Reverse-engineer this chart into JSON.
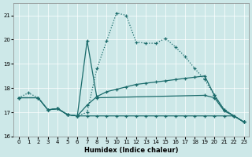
{
  "xlabel": "Humidex (Indice chaleur)",
  "background_color": "#cde8e8",
  "grid_color": "#ffffff",
  "line_color": "#1a6b6b",
  "xlim": [
    -0.5,
    23.5
  ],
  "ylim": [
    16,
    21.5
  ],
  "yticks": [
    16,
    17,
    18,
    19,
    20,
    21
  ],
  "xticks": [
    0,
    1,
    2,
    3,
    4,
    5,
    6,
    7,
    8,
    9,
    10,
    11,
    12,
    13,
    14,
    15,
    16,
    17,
    18,
    19,
    20,
    21,
    22,
    23
  ],
  "curve1_x": [
    0,
    1,
    2,
    3,
    4,
    5,
    6,
    7,
    8,
    9,
    10,
    11,
    12,
    13,
    14,
    15,
    16,
    17,
    18,
    19,
    20,
    21,
    22,
    23
  ],
  "curve1_y": [
    17.6,
    17.8,
    17.6,
    17.1,
    17.15,
    16.9,
    16.85,
    17.0,
    18.8,
    19.95,
    21.1,
    21.0,
    19.9,
    19.85,
    19.85,
    20.05,
    19.7,
    19.3,
    18.8,
    18.35,
    17.7,
    17.1,
    16.85,
    16.6
  ],
  "curve2_x": [
    3,
    4,
    5,
    6,
    7,
    8,
    19,
    20,
    21,
    22,
    23
  ],
  "curve2_y": [
    17.1,
    17.15,
    16.9,
    16.85,
    19.95,
    17.6,
    17.7,
    17.6,
    17.05,
    16.85,
    16.6
  ],
  "curve3_x": [
    0,
    2,
    3,
    4,
    5,
    6,
    7,
    8,
    9,
    10,
    11,
    12,
    13,
    14,
    15,
    16,
    17,
    18,
    19,
    20,
    21,
    22,
    23
  ],
  "curve3_y": [
    17.6,
    17.6,
    17.1,
    17.15,
    16.9,
    16.85,
    17.3,
    17.65,
    17.85,
    17.95,
    18.05,
    18.15,
    18.2,
    18.25,
    18.3,
    18.35,
    18.4,
    18.45,
    18.5,
    17.7,
    17.1,
    16.85,
    16.6
  ],
  "curve4_x": [
    0,
    2,
    3,
    4,
    5,
    6,
    7,
    8,
    9,
    10,
    11,
    12,
    13,
    14,
    15,
    16,
    17,
    18,
    19,
    20,
    21,
    22,
    23
  ],
  "curve4_y": [
    17.6,
    17.6,
    17.1,
    17.15,
    16.9,
    16.85,
    16.85,
    16.85,
    16.85,
    16.85,
    16.85,
    16.85,
    16.85,
    16.85,
    16.85,
    16.85,
    16.85,
    16.85,
    16.85,
    16.85,
    16.85,
    16.85,
    16.6
  ]
}
